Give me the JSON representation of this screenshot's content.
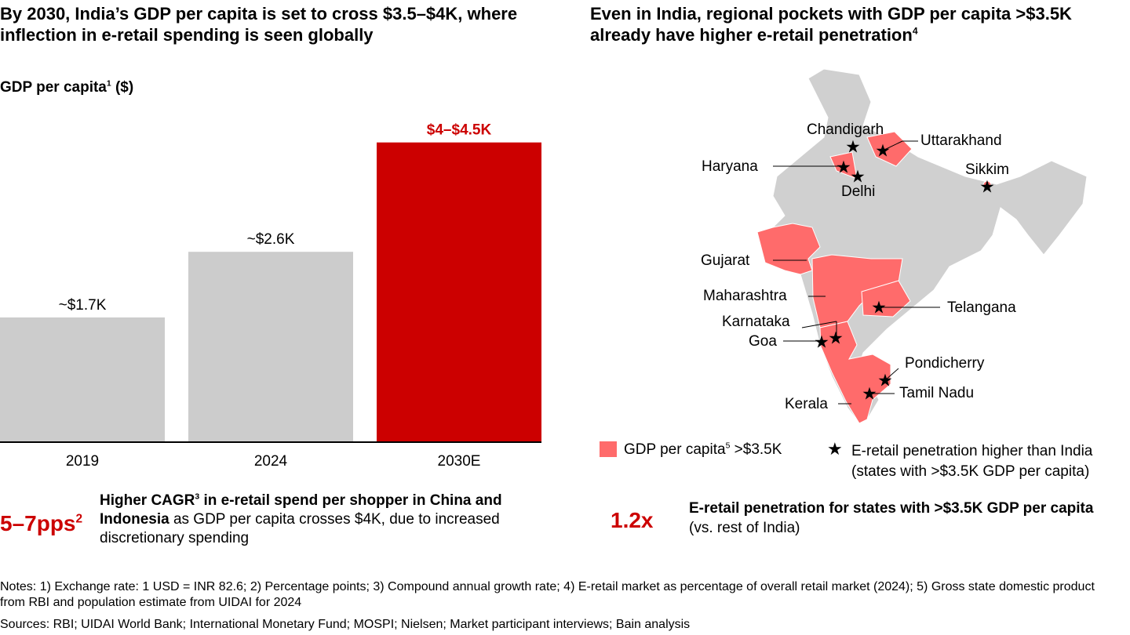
{
  "left": {
    "title": "By 2030, India’s GDP per capita is set to cross $3.5–$4K, where inflection in e-retail spending is seen globally",
    "subtitle": "GDP per capita",
    "subtitle_sup": "1",
    "subtitle_unit": " ($)",
    "callout": {
      "value": "5–7pps",
      "value_sup": "2",
      "bold1": "Higher CAGR",
      "bold1_sup": "3",
      "bold2": " in e-retail spend per shopper in China and Indonesia",
      "rest": " as GDP per capita crosses $4K, due to increased discretionary spending"
    }
  },
  "chart_data": {
    "type": "bar",
    "categories": [
      "2019",
      "2024",
      "2030E"
    ],
    "values": [
      1.7,
      2.6,
      4.1
    ],
    "data_labels": [
      "~$1.7K",
      "~$2.6K",
      "$4–$4.5K"
    ],
    "ylabel": "GDP per capita ($)",
    "colors": [
      "#cccccc",
      "#cccccc",
      "#cc0000"
    ],
    "grid": false
  },
  "right": {
    "title": "Even in India, regional pockets with GDP per capita >$3.5K already have higher e-retail penetration",
    "title_sup": "4",
    "map": {
      "labels": {
        "chandigarh": "Chandigarh",
        "uttarakhand": "Uttarakhand",
        "haryana": "Haryana",
        "delhi": "Delhi",
        "sikkim": "Sikkim",
        "gujarat": "Gujarat",
        "maharashtra": "Maharashtra",
        "telangana": "Telangana",
        "karnataka": "Karnataka",
        "goa": "Goa",
        "pondicherry": "Pondicherry",
        "tamil_nadu": "Tamil Nadu",
        "kerala": "Kerala"
      },
      "base_color": "#d0d0d0",
      "highlight_color": "#ff6b6b"
    },
    "legend": {
      "swatch_label": "GDP per capita",
      "swatch_sup": "5",
      "swatch_rest": " >$3.5K",
      "star_label": "E-retail penetration higher than India",
      "star_label2": "(states with >$3.5K GDP per capita)"
    },
    "callout": {
      "value": "1.2x",
      "bold": "E-retail penetration for states with >$3.5K GDP per capita",
      "rest": " (vs. rest of India)"
    }
  },
  "footer": {
    "notes": "Notes: 1) Exchange rate: 1 USD = INR 82.6; 2) Percentage points; 3) Compound annual growth rate; 4) E-retail market as percentage of overall retail market (2024); 5) Gross state domestic product from RBI and population estimate from UIDAI for 2024",
    "sources": "Sources: RBI; UIDAI World Bank; International Monetary Fund; MOSPI; Nielsen; Market participant interviews; Bain analysis"
  }
}
